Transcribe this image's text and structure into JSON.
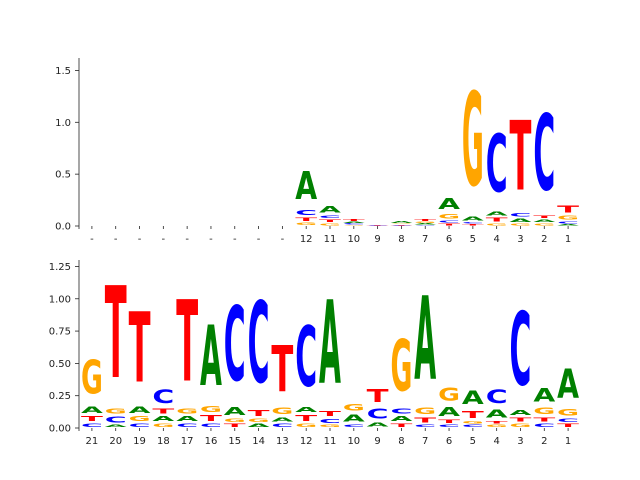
{
  "chart_data": [
    {
      "type": "sequence-logo",
      "title": "",
      "xlabel": "",
      "ylabel": "",
      "ylim": [
        0,
        1.62
      ],
      "yticks": [
        0.0,
        0.5,
        1.0,
        1.5
      ],
      "ytick_labels": [
        "0.0",
        "0.5",
        "1.0",
        "1.5"
      ],
      "grid": false,
      "xtick_labels": [
        "-",
        "-",
        "-",
        "-",
        "-",
        "-",
        "-",
        "-",
        "-",
        "12",
        "11",
        "10",
        "9",
        "8",
        "7",
        "6",
        "5",
        "4",
        "3",
        "2",
        "1"
      ],
      "positions": [
        [],
        [],
        [],
        [],
        [],
        [],
        [],
        [],
        [],
        [
          {
            "l": "G",
            "h": 0.04
          },
          {
            "l": "T",
            "h": 0.05
          },
          {
            "l": "C",
            "h": 0.08
          },
          {
            "l": "A",
            "h": 0.43
          }
        ],
        [
          {
            "l": "G",
            "h": 0.03
          },
          {
            "l": "T",
            "h": 0.04
          },
          {
            "l": "C",
            "h": 0.04
          },
          {
            "l": "A",
            "h": 0.1
          }
        ],
        [
          {
            "l": "G",
            "h": 0.01
          },
          {
            "l": "C",
            "h": 0.015
          },
          {
            "l": "A",
            "h": 0.02
          },
          {
            "l": "T",
            "h": 0.025
          }
        ],
        [
          {
            "l": "C",
            "h": 0.005
          },
          {
            "l": "T",
            "h": 0.008
          }
        ],
        [
          {
            "l": "C",
            "h": 0.005
          },
          {
            "l": "T",
            "h": 0.01
          },
          {
            "l": "G",
            "h": 0.01
          },
          {
            "l": "A",
            "h": 0.025
          }
        ],
        [
          {
            "l": "C",
            "h": 0.01
          },
          {
            "l": "A",
            "h": 0.015
          },
          {
            "l": "G",
            "h": 0.015
          },
          {
            "l": "T",
            "h": 0.03
          }
        ],
        [
          {
            "l": "T",
            "h": 0.03
          },
          {
            "l": "C",
            "h": 0.03
          },
          {
            "l": "G",
            "h": 0.07
          },
          {
            "l": "A",
            "h": 0.17
          }
        ],
        [
          {
            "l": "T",
            "h": 0.02
          },
          {
            "l": "C",
            "h": 0.02
          },
          {
            "l": "A",
            "h": 0.06
          },
          {
            "l": "G",
            "h": 1.45
          }
        ],
        [
          {
            "l": "G",
            "h": 0.03
          },
          {
            "l": "T",
            "h": 0.06
          },
          {
            "l": "A",
            "h": 0.06
          },
          {
            "l": "C",
            "h": 0.9
          }
        ],
        [
          {
            "l": "G",
            "h": 0.03
          },
          {
            "l": "A",
            "h": 0.05
          },
          {
            "l": "C",
            "h": 0.05
          },
          {
            "l": "T",
            "h": 1.08
          }
        ],
        [
          {
            "l": "G",
            "h": 0.03
          },
          {
            "l": "A",
            "h": 0.04
          },
          {
            "l": "T",
            "h": 0.04
          },
          {
            "l": "C",
            "h": 1.18
          }
        ],
        [
          {
            "l": "A",
            "h": 0.02
          },
          {
            "l": "C",
            "h": 0.03
          },
          {
            "l": "G",
            "h": 0.06
          },
          {
            "l": "T",
            "h": 0.11
          }
        ]
      ]
    },
    {
      "type": "sequence-logo",
      "title": "",
      "xlabel": "",
      "ylabel": "",
      "ylim": [
        0,
        1.3
      ],
      "yticks": [
        0.0,
        0.25,
        0.5,
        0.75,
        1.0,
        1.25
      ],
      "ytick_labels": [
        "0.00",
        "0.25",
        "0.50",
        "0.75",
        "1.00",
        "1.25"
      ],
      "grid": false,
      "xtick_labels": [
        "21",
        "20",
        "19",
        "18",
        "17",
        "16",
        "15",
        "14",
        "13",
        "12",
        "11",
        "10",
        "9",
        "8",
        "7",
        "6",
        "5",
        "4",
        "3",
        "2",
        "1"
      ],
      "positions": [
        [
          {
            "l": "C",
            "h": 0.04
          },
          {
            "l": "T",
            "h": 0.06
          },
          {
            "l": "A",
            "h": 0.08
          },
          {
            "l": "G",
            "h": 0.42
          }
        ],
        [
          {
            "l": "A",
            "h": 0.03
          },
          {
            "l": "C",
            "h": 0.07
          },
          {
            "l": "G",
            "h": 0.06
          },
          {
            "l": "T",
            "h": 1.14
          }
        ],
        [
          {
            "l": "C",
            "h": 0.04
          },
          {
            "l": "G",
            "h": 0.06
          },
          {
            "l": "A",
            "h": 0.08
          },
          {
            "l": "T",
            "h": 0.87
          }
        ],
        [
          {
            "l": "G",
            "h": 0.04
          },
          {
            "l": "A",
            "h": 0.06
          },
          {
            "l": "T",
            "h": 0.06
          },
          {
            "l": "C",
            "h": 0.17
          }
        ],
        [
          {
            "l": "C",
            "h": 0.04
          },
          {
            "l": "A",
            "h": 0.06
          },
          {
            "l": "G",
            "h": 0.06
          },
          {
            "l": "T",
            "h": 1.01
          }
        ],
        [
          {
            "l": "C",
            "h": 0.04
          },
          {
            "l": "T",
            "h": 0.07
          },
          {
            "l": "G",
            "h": 0.07
          },
          {
            "l": "A",
            "h": 0.75
          }
        ],
        [
          {
            "l": "T",
            "h": 0.04
          },
          {
            "l": "G",
            "h": 0.04
          },
          {
            "l": "A",
            "h": 0.1
          },
          {
            "l": "C",
            "h": 0.93
          }
        ],
        [
          {
            "l": "A",
            "h": 0.04
          },
          {
            "l": "G",
            "h": 0.04
          },
          {
            "l": "T",
            "h": 0.07
          },
          {
            "l": "C",
            "h": 1.01
          }
        ],
        [
          {
            "l": "C",
            "h": 0.04
          },
          {
            "l": "A",
            "h": 0.05
          },
          {
            "l": "G",
            "h": 0.08
          },
          {
            "l": "T",
            "h": 0.57
          }
        ],
        [
          {
            "l": "G",
            "h": 0.04
          },
          {
            "l": "T",
            "h": 0.07
          },
          {
            "l": "A",
            "h": 0.06
          },
          {
            "l": "C",
            "h": 0.75
          }
        ],
        [
          {
            "l": "G",
            "h": 0.03
          },
          {
            "l": "C",
            "h": 0.05
          },
          {
            "l": "T",
            "h": 0.06
          },
          {
            "l": "A",
            "h": 1.03
          }
        ],
        [
          {
            "l": "C",
            "h": 0.03
          },
          {
            "l": "A",
            "h": 0.09
          },
          {
            "l": "G",
            "h": 0.08
          }
        ],
        [
          {
            "l": "A",
            "h": 0.05
          },
          {
            "l": "C",
            "h": 0.12
          },
          {
            "l": "T",
            "h": 0.16
          }
        ],
        [
          {
            "l": "T",
            "h": 0.04
          },
          {
            "l": "A",
            "h": 0.06
          },
          {
            "l": "C",
            "h": 0.06
          },
          {
            "l": "G",
            "h": 0.64
          }
        ],
        [
          {
            "l": "C",
            "h": 0.03
          },
          {
            "l": "T",
            "h": 0.06
          },
          {
            "l": "G",
            "h": 0.08
          },
          {
            "l": "A",
            "h": 1.03
          }
        ],
        [
          {
            "l": "C",
            "h": 0.03
          },
          {
            "l": "T",
            "h": 0.04
          },
          {
            "l": "A",
            "h": 0.11
          },
          {
            "l": "G",
            "h": 0.16
          }
        ],
        [
          {
            "l": "C",
            "h": 0.03
          },
          {
            "l": "G",
            "h": 0.03
          },
          {
            "l": "T",
            "h": 0.09
          },
          {
            "l": "A",
            "h": 0.17
          }
        ],
        [
          {
            "l": "G",
            "h": 0.03
          },
          {
            "l": "T",
            "h": 0.03
          },
          {
            "l": "A",
            "h": 0.1
          },
          {
            "l": "C",
            "h": 0.17
          }
        ],
        [
          {
            "l": "G",
            "h": 0.04
          },
          {
            "l": "T",
            "h": 0.05
          },
          {
            "l": "A",
            "h": 0.06
          },
          {
            "l": "C",
            "h": 0.91
          }
        ],
        [
          {
            "l": "C",
            "h": 0.04
          },
          {
            "l": "T",
            "h": 0.05
          },
          {
            "l": "G",
            "h": 0.08
          },
          {
            "l": "A",
            "h": 0.17
          }
        ],
        [
          {
            "l": "T",
            "h": 0.04
          },
          {
            "l": "C",
            "h": 0.04
          },
          {
            "l": "G",
            "h": 0.08
          },
          {
            "l": "A",
            "h": 0.36
          }
        ]
      ]
    }
  ],
  "colors": {
    "A": "#008000",
    "C": "#0000ff",
    "G": "#ffa500",
    "T": "#ff0000",
    "axis": "#222222",
    "background": "#ffffff"
  }
}
